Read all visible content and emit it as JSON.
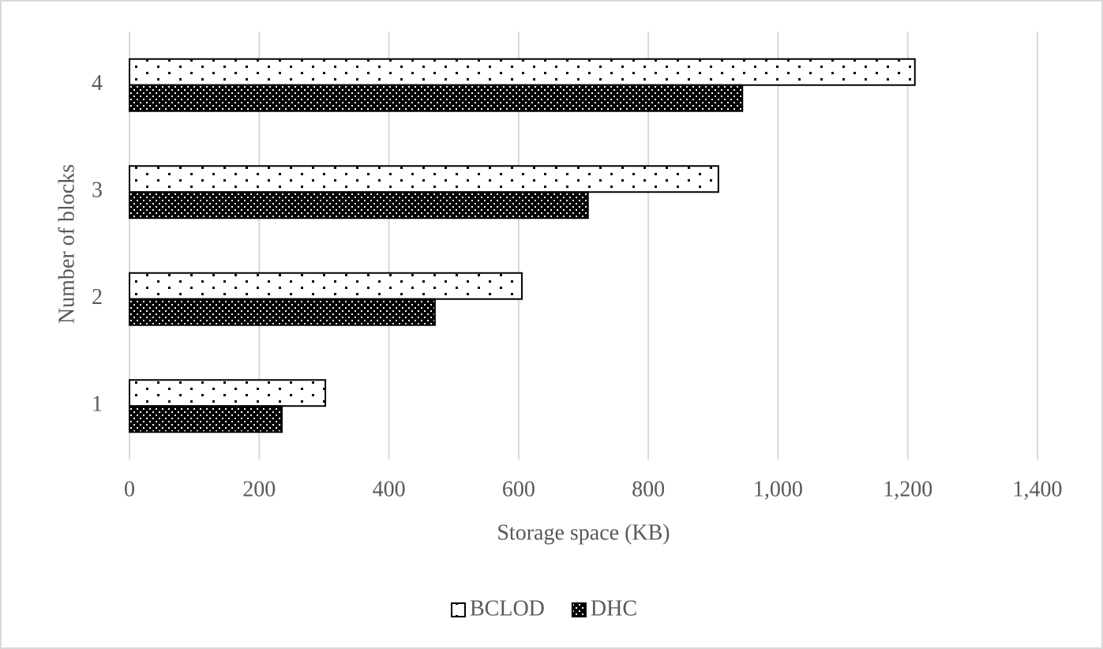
{
  "chart_data": {
    "type": "hbar",
    "x_label": "Storage space (KB)",
    "y_label": "Number of blocks",
    "categories": [
      "1",
      "2",
      "3",
      "4"
    ],
    "series": [
      {
        "name": "BCLOD",
        "color": "#ffffff",
        "values": [
          302,
          605,
          908,
          1211
        ]
      },
      {
        "name": "DHC",
        "color": "#000000",
        "values": [
          235,
          471,
          707,
          945
        ]
      }
    ],
    "xlim": [
      0,
      1400
    ],
    "xticks": [
      0,
      200,
      400,
      600,
      800,
      {
        "value": 1000,
        "label": "1,000"
      },
      {
        "value": 1200,
        "label": "1,200"
      },
      {
        "value": 1400,
        "label": "1,400"
      }
    ],
    "grid": true,
    "legend": "bottom"
  }
}
